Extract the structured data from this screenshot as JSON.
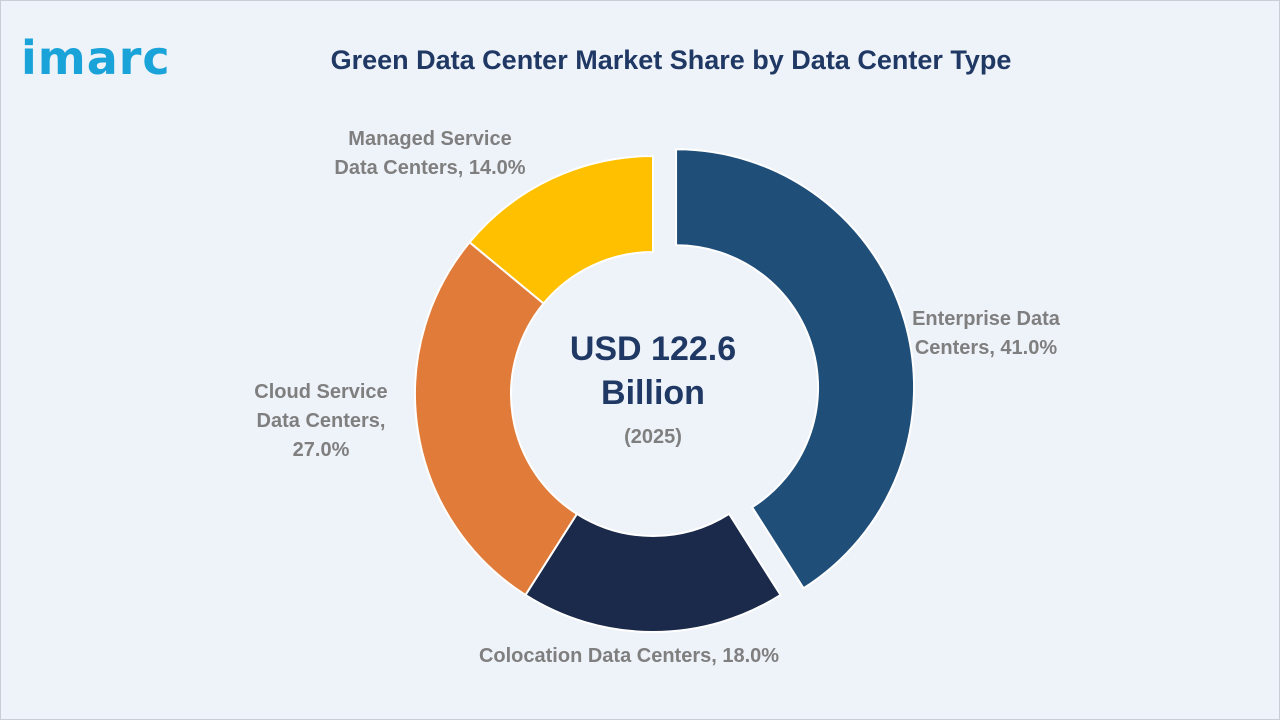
{
  "brand": {
    "logo_text": "imarc"
  },
  "chart_data": {
    "type": "pie",
    "title": "Green Data Center Market Share by Data Center Type",
    "center_text": {
      "line1": "USD 122.6",
      "line2": "Billion",
      "line3": "(2025)"
    },
    "slices": [
      {
        "label": "Enterprise Data Centers",
        "value": 41.0,
        "color": "#1f4e79",
        "label_lines": [
          "Enterprise Data",
          "Centers, 41.0%"
        ]
      },
      {
        "label": "Colocation Data Centers",
        "value": 18.0,
        "color": "#1b2a4a",
        "label_lines": [
          "Colocation Data Centers, 18.0%"
        ]
      },
      {
        "label": "Cloud Service Data Centers",
        "value": 27.0,
        "color": "#e07b39",
        "label_lines": [
          "Cloud Service",
          "Data Centers,",
          "27.0%"
        ]
      },
      {
        "label": "Managed Service Data Centers",
        "value": 14.0,
        "color": "#ffc000",
        "label_lines": [
          "Managed Service",
          "Data Centers, 14.0%"
        ]
      }
    ]
  }
}
